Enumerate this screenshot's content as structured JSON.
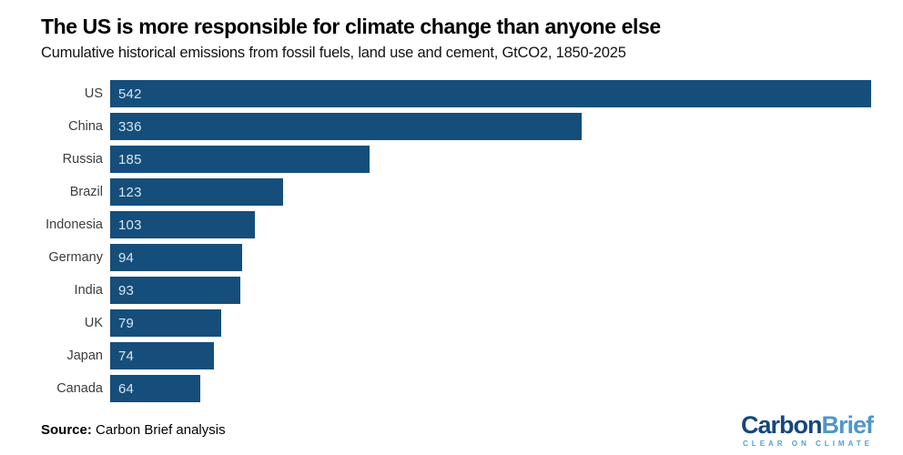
{
  "header": {
    "title": "The US is more responsible for climate change than anyone else",
    "subtitle": "Cumulative historical emissions from fossil fuels, land use and cement, GtCO2, 1850-2025"
  },
  "chart_data": {
    "type": "bar",
    "orientation": "horizontal",
    "title": "The US is more responsible for climate change than anyone else",
    "subtitle": "Cumulative historical emissions from fossil fuels, land use and cement, GtCO2, 1850-2025",
    "categories": [
      "US",
      "China",
      "Russia",
      "Brazil",
      "Indonesia",
      "Germany",
      "India",
      "UK",
      "Japan",
      "Canada"
    ],
    "values": [
      542,
      336,
      185,
      123,
      103,
      94,
      93,
      79,
      74,
      64
    ],
    "unit": "GtCO2",
    "xlim": [
      0,
      542
    ],
    "grid": false,
    "value_labels": "inside-bar-left",
    "bar_color": "#154E7B",
    "value_label_color": "#D9E4ED",
    "category_label_color": "#3C3C3C"
  },
  "footer": {
    "source_label": "Source:",
    "source_text": " Carbon Brief analysis",
    "logo": {
      "part1": "Carbon",
      "part2": "Brief",
      "tagline": "CLEAR ON CLIMATE",
      "part1_color": "#16477B",
      "part2_color": "#4F96CD",
      "tagline_color": "#55A0CF"
    }
  }
}
